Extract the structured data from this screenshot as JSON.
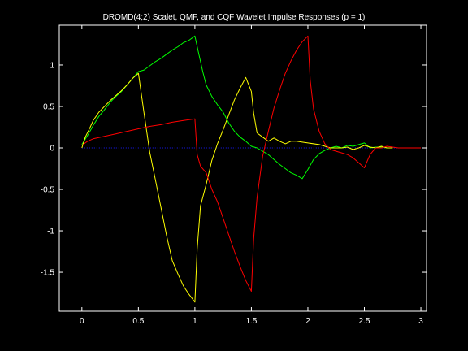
{
  "chart_data": {
    "type": "line",
    "title": "DROMD(4;2) Scalet, QMF, and CQF Wavelet Impulse Responses (p = 1)",
    "xlabel": "",
    "ylabel": "",
    "xlim": [
      -0.2,
      3.05
    ],
    "ylim": [
      -1.97,
      1.48
    ],
    "grid": false,
    "background": "#000000",
    "axis_color": "#ffffff",
    "xticks": [
      0,
      0.5,
      1,
      1.5,
      2,
      2.5,
      3
    ],
    "xtick_labels": [
      "0",
      "0.5",
      "1",
      "1.5",
      "2",
      "2.5",
      "3"
    ],
    "yticks": [
      -1.5,
      -1,
      -0.5,
      0,
      0.5,
      1
    ],
    "ytick_labels": [
      "-1.5",
      "-1",
      "-0.5",
      "0",
      "0.5",
      "1"
    ],
    "baseline": {
      "y": 0,
      "x_range": [
        0,
        3
      ],
      "color": "#1a1aff"
    },
    "series": [
      {
        "color": "#00ff00",
        "x": [
          0,
          0.05,
          0.1,
          0.15,
          0.2,
          0.25,
          0.3,
          0.35,
          0.4,
          0.45,
          0.5,
          0.55,
          0.6,
          0.65,
          0.7,
          0.75,
          0.8,
          0.85,
          0.9,
          0.95,
          1.0,
          1.03,
          1.07,
          1.1,
          1.15,
          1.2,
          1.25,
          1.3,
          1.35,
          1.4,
          1.45,
          1.5,
          1.55,
          1.6,
          1.65,
          1.7,
          1.75,
          1.8,
          1.85,
          1.9,
          1.95,
          2.0,
          2.05,
          2.1,
          2.15,
          2.2,
          2.25,
          2.3,
          2.35,
          2.4,
          2.45,
          2.5,
          2.55,
          2.6,
          2.65,
          2.7,
          2.75
        ],
        "y": [
          0.04,
          0.15,
          0.27,
          0.38,
          0.46,
          0.55,
          0.62,
          0.68,
          0.76,
          0.84,
          0.92,
          0.94,
          0.99,
          1.04,
          1.08,
          1.13,
          1.18,
          1.22,
          1.27,
          1.3,
          1.35,
          1.16,
          0.92,
          0.76,
          0.62,
          0.52,
          0.43,
          0.3,
          0.2,
          0.13,
          0.08,
          0.02,
          0.0,
          -0.04,
          -0.08,
          -0.14,
          -0.2,
          -0.25,
          -0.3,
          -0.33,
          -0.37,
          -0.26,
          -0.14,
          -0.07,
          -0.03,
          0.0,
          0.02,
          0.0,
          0.03,
          0.02,
          0.04,
          0.06,
          0.0,
          0.01,
          0.01,
          0.0,
          0.0
        ]
      },
      {
        "color": "#ffff00",
        "x": [
          0,
          0.03,
          0.07,
          0.1,
          0.15,
          0.2,
          0.25,
          0.3,
          0.35,
          0.4,
          0.45,
          0.5,
          0.55,
          0.6,
          0.65,
          0.7,
          0.75,
          0.8,
          0.85,
          0.9,
          0.95,
          1.0,
          1.02,
          1.05,
          1.1,
          1.15,
          1.2,
          1.25,
          1.3,
          1.35,
          1.4,
          1.45,
          1.5,
          1.52,
          1.55,
          1.6,
          1.65,
          1.7,
          1.75,
          1.8,
          1.85,
          1.9,
          1.95,
          2.0,
          2.1,
          2.2,
          2.3,
          2.35,
          2.4,
          2.45,
          2.5,
          2.55,
          2.6,
          2.65,
          2.7,
          2.75
        ],
        "y": [
          0.0,
          0.13,
          0.24,
          0.33,
          0.43,
          0.5,
          0.57,
          0.63,
          0.69,
          0.76,
          0.84,
          0.9,
          0.42,
          -0.05,
          -0.38,
          -0.72,
          -1.06,
          -1.36,
          -1.52,
          -1.67,
          -1.77,
          -1.86,
          -1.22,
          -0.7,
          -0.44,
          -0.15,
          0.05,
          0.22,
          0.4,
          0.58,
          0.72,
          0.85,
          0.68,
          0.42,
          0.18,
          0.13,
          0.08,
          0.12,
          0.08,
          0.05,
          0.08,
          0.08,
          0.07,
          0.06,
          0.04,
          0.0,
          0.0,
          0.01,
          -0.02,
          0.0,
          0.03,
          0.01,
          0.0,
          0.02,
          0.0,
          0.0
        ]
      },
      {
        "color": "#ff0000",
        "x": [
          0,
          0.05,
          0.1,
          0.2,
          0.3,
          0.4,
          0.5,
          0.6,
          0.7,
          0.8,
          0.9,
          1.0,
          1.02,
          1.05,
          1.1,
          1.15,
          1.2,
          1.25,
          1.3,
          1.35,
          1.4,
          1.45,
          1.5,
          1.52,
          1.55,
          1.6,
          1.65,
          1.7,
          1.75,
          1.8,
          1.85,
          1.9,
          1.95,
          2.0,
          2.02,
          2.05,
          2.1,
          2.15,
          2.2,
          2.25,
          2.3,
          2.35,
          2.4,
          2.45,
          2.5,
          2.55,
          2.6,
          2.65,
          2.7,
          2.75,
          2.8,
          3.0
        ],
        "y": [
          0.03,
          0.08,
          0.11,
          0.14,
          0.17,
          0.2,
          0.23,
          0.26,
          0.28,
          0.31,
          0.33,
          0.35,
          -0.08,
          -0.22,
          -0.3,
          -0.5,
          -0.65,
          -0.85,
          -1.05,
          -1.25,
          -1.43,
          -1.6,
          -1.73,
          -1.1,
          -0.6,
          -0.1,
          0.2,
          0.48,
          0.7,
          0.9,
          1.05,
          1.18,
          1.28,
          1.35,
          0.82,
          0.47,
          0.2,
          0.05,
          -0.02,
          -0.04,
          -0.06,
          -0.08,
          -0.12,
          -0.18,
          -0.24,
          -0.08,
          0.0,
          0.0,
          0.02,
          0.01,
          0.0,
          0.0
        ]
      }
    ]
  }
}
